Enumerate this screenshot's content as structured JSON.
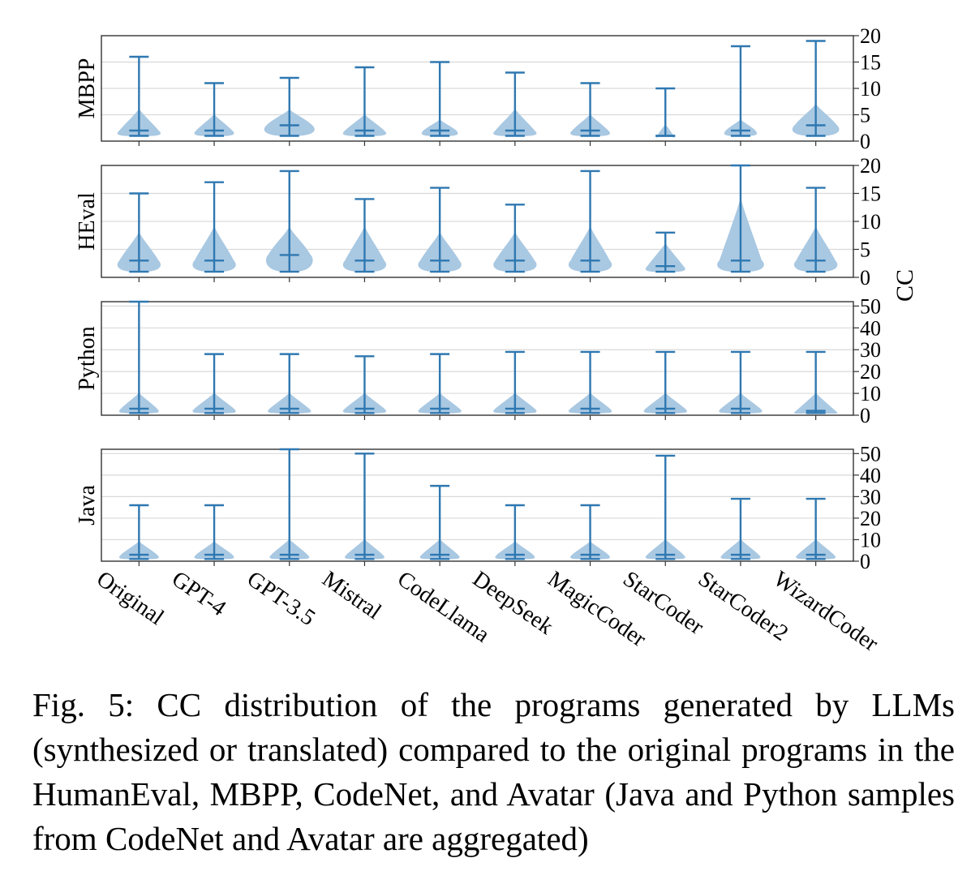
{
  "figure": {
    "shared_y_label": "CC",
    "colors": {
      "body": "#a9c8e2",
      "line": "#2f78b1",
      "frame": "#333333",
      "grid": "#d9d9d9"
    },
    "categories": [
      "Original",
      "GPT-4",
      "GPT-3.5",
      "Mistral",
      "CodeLlama",
      "DeepSeek",
      "MagicCoder",
      "StarCoder",
      "StarCoder2",
      "WizardCoder"
    ]
  },
  "chart_data": [
    {
      "type": "violin",
      "panel_label": "MBPP",
      "ylim": [
        0,
        20
      ],
      "yticks": [
        0,
        5,
        10,
        15,
        20
      ],
      "grid": true,
      "series": [
        {
          "category": "Original",
          "min": 1,
          "max": 16,
          "median": 2,
          "violin_top": 6,
          "width": 0.6
        },
        {
          "category": "GPT-4",
          "min": 1,
          "max": 11,
          "median": 2,
          "violin_top": 5,
          "width": 0.55
        },
        {
          "category": "GPT-3.5",
          "min": 1,
          "max": 12,
          "median": 3,
          "violin_top": 6,
          "width": 0.7
        },
        {
          "category": "Mistral",
          "min": 1,
          "max": 14,
          "median": 2,
          "violin_top": 5,
          "width": 0.6
        },
        {
          "category": "CodeLlama",
          "min": 1,
          "max": 15,
          "median": 2,
          "violin_top": 4,
          "width": 0.5
        },
        {
          "category": "DeepSeek",
          "min": 1,
          "max": 13,
          "median": 2,
          "violin_top": 6,
          "width": 0.6
        },
        {
          "category": "MagicCoder",
          "min": 1,
          "max": 11,
          "median": 2,
          "violin_top": 5,
          "width": 0.55
        },
        {
          "category": "StarCoder",
          "min": 1,
          "max": 10,
          "median": 1,
          "violin_top": 3,
          "width": 0.25
        },
        {
          "category": "StarCoder2",
          "min": 1,
          "max": 18,
          "median": 2,
          "violin_top": 4,
          "width": 0.45
        },
        {
          "category": "WizardCoder",
          "min": 1,
          "max": 19,
          "median": 3,
          "violin_top": 7,
          "width": 0.65
        }
      ]
    },
    {
      "type": "violin",
      "panel_label": "HEval",
      "ylim": [
        0,
        20
      ],
      "yticks": [
        0,
        5,
        10,
        15,
        20
      ],
      "grid": true,
      "series": [
        {
          "category": "Original",
          "min": 1,
          "max": 15,
          "median": 3,
          "violin_top": 8,
          "width": 0.6
        },
        {
          "category": "GPT-4",
          "min": 1,
          "max": 17,
          "median": 3,
          "violin_top": 9,
          "width": 0.6
        },
        {
          "category": "GPT-3.5",
          "min": 1,
          "max": 19,
          "median": 4,
          "violin_top": 9,
          "width": 0.65
        },
        {
          "category": "Mistral",
          "min": 1,
          "max": 14,
          "median": 3,
          "violin_top": 9,
          "width": 0.6
        },
        {
          "category": "CodeLlama",
          "min": 1,
          "max": 16,
          "median": 3,
          "violin_top": 8,
          "width": 0.6
        },
        {
          "category": "DeepSeek",
          "min": 1,
          "max": 13,
          "median": 3,
          "violin_top": 8,
          "width": 0.6
        },
        {
          "category": "MagicCoder",
          "min": 1,
          "max": 19,
          "median": 3,
          "violin_top": 9,
          "width": 0.6
        },
        {
          "category": "StarCoder",
          "min": 1,
          "max": 8,
          "median": 2,
          "violin_top": 6,
          "width": 0.55
        },
        {
          "category": "StarCoder2",
          "min": 1,
          "max": 20,
          "median": 3,
          "violin_top": 14,
          "width": 0.65
        },
        {
          "category": "WizardCoder",
          "min": 1,
          "max": 16,
          "median": 3,
          "violin_top": 9,
          "width": 0.6
        }
      ]
    },
    {
      "type": "violin",
      "panel_label": "Python",
      "ylim": [
        0,
        52
      ],
      "yticks": [
        0,
        10,
        20,
        30,
        40,
        50
      ],
      "grid": true,
      "series": [
        {
          "category": "Original",
          "min": 1,
          "max": 52,
          "median": 3,
          "violin_top": 10,
          "width": 0.55
        },
        {
          "category": "GPT-4",
          "min": 1,
          "max": 28,
          "median": 3,
          "violin_top": 10,
          "width": 0.6
        },
        {
          "category": "GPT-3.5",
          "min": 1,
          "max": 28,
          "median": 3,
          "violin_top": 10,
          "width": 0.6
        },
        {
          "category": "Mistral",
          "min": 1,
          "max": 27,
          "median": 3,
          "violin_top": 10,
          "width": 0.6
        },
        {
          "category": "CodeLlama",
          "min": 1,
          "max": 28,
          "median": 3,
          "violin_top": 10,
          "width": 0.6
        },
        {
          "category": "DeepSeek",
          "min": 1,
          "max": 29,
          "median": 3,
          "violin_top": 10,
          "width": 0.6
        },
        {
          "category": "MagicCoder",
          "min": 1,
          "max": 29,
          "median": 3,
          "violin_top": 10,
          "width": 0.6
        },
        {
          "category": "StarCoder",
          "min": 1,
          "max": 29,
          "median": 3,
          "violin_top": 10,
          "width": 0.6
        },
        {
          "category": "StarCoder2",
          "min": 1,
          "max": 29,
          "median": 3,
          "violin_top": 10,
          "width": 0.6
        },
        {
          "category": "WizardCoder",
          "min": 1,
          "max": 29,
          "median": 2,
          "violin_top": 10,
          "width": 0.6
        }
      ]
    },
    {
      "type": "violin",
      "panel_label": "Java",
      "ylim": [
        0,
        52
      ],
      "yticks": [
        0,
        10,
        20,
        30,
        40,
        50
      ],
      "grid": true,
      "series": [
        {
          "category": "Original",
          "min": 1,
          "max": 26,
          "median": 3,
          "violin_top": 9,
          "width": 0.55
        },
        {
          "category": "GPT-4",
          "min": 1,
          "max": 26,
          "median": 3,
          "violin_top": 9,
          "width": 0.55
        },
        {
          "category": "GPT-3.5",
          "min": 1,
          "max": 52,
          "median": 3,
          "violin_top": 10,
          "width": 0.55
        },
        {
          "category": "Mistral",
          "min": 1,
          "max": 50,
          "median": 3,
          "violin_top": 10,
          "width": 0.55
        },
        {
          "category": "CodeLlama",
          "min": 1,
          "max": 35,
          "median": 3,
          "violin_top": 10,
          "width": 0.55
        },
        {
          "category": "DeepSeek",
          "min": 1,
          "max": 26,
          "median": 3,
          "violin_top": 9,
          "width": 0.55
        },
        {
          "category": "MagicCoder",
          "min": 1,
          "max": 26,
          "median": 3,
          "violin_top": 9,
          "width": 0.55
        },
        {
          "category": "StarCoder",
          "min": 1,
          "max": 49,
          "median": 3,
          "violin_top": 10,
          "width": 0.55
        },
        {
          "category": "StarCoder2",
          "min": 1,
          "max": 29,
          "median": 3,
          "violin_top": 10,
          "width": 0.55
        },
        {
          "category": "WizardCoder",
          "min": 1,
          "max": 29,
          "median": 3,
          "violin_top": 10,
          "width": 0.55
        }
      ]
    }
  ],
  "caption": {
    "text": "Fig. 5: CC distribution of the programs generated by LLMs (synthesized or translated) compared to the original programs in the HumanEval, MBPP, CodeNet, and Avatar (Java and Python samples from CodeNet and Avatar are aggregated)"
  }
}
